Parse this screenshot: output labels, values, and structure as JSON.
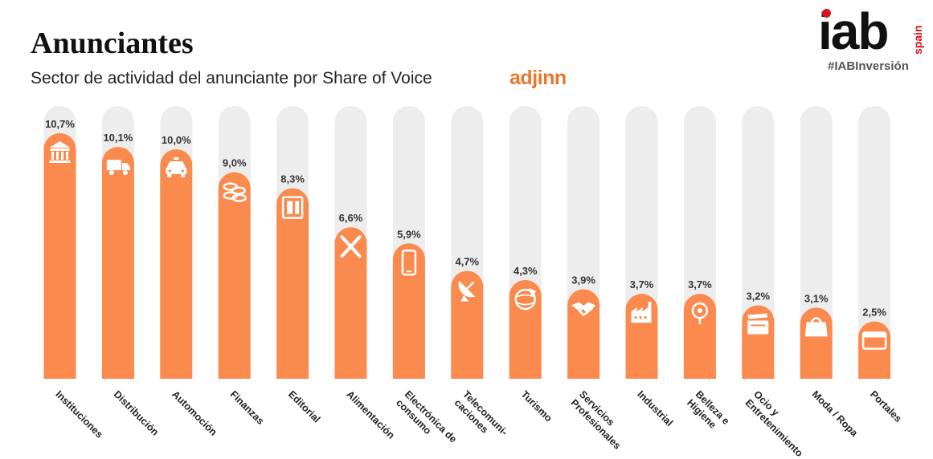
{
  "header": {
    "title": "Anunciantes",
    "subtitle": "Sector de actividad del anunciante por Share of Voice",
    "adjinn_left": "ad",
    "adjinn_right": "jinn"
  },
  "logo": {
    "text": "iab",
    "spain": "spain",
    "hashtag": "#IABInversión"
  },
  "colors": {
    "bar": "#fa8a4d",
    "track": "#ededed",
    "label": "#333333"
  },
  "chart_data": {
    "type": "bar",
    "title": "",
    "xlabel": "",
    "ylabel": "",
    "ylim": [
      0,
      11.5
    ],
    "grid": false,
    "legend": "none",
    "unit": "%",
    "categories": [
      "Instituciones",
      "Distribución",
      "Automoción",
      "Finanzas",
      "Editorial",
      "Alimentación",
      "Electrónica de consumo",
      "Telecomuni-caciones",
      "Turismo",
      "Servicios Profesionales",
      "Industrial",
      "Belleza e Higiene",
      "Ocio y Entretenimiento",
      "Moda / Ropa",
      "Portales"
    ],
    "category_lines": [
      [
        "Instituciones"
      ],
      [
        "Distribución"
      ],
      [
        "Automoción"
      ],
      [
        "Finanzas"
      ],
      [
        "Editorial"
      ],
      [
        "Alimentación"
      ],
      [
        "Electrónica de",
        "consumo"
      ],
      [
        "Telecomuni-",
        "caciones"
      ],
      [
        "Turismo"
      ],
      [
        "Servicios",
        "Profesionales"
      ],
      [
        "Industrial"
      ],
      [
        "Belleza e",
        "Higiene"
      ],
      [
        "Ocio y",
        "Entretenimiento"
      ],
      [
        "Moda / Ropa"
      ],
      [
        "Portales"
      ]
    ],
    "values": [
      10.7,
      10.1,
      10.0,
      9.0,
      8.3,
      6.6,
      5.9,
      4.7,
      4.3,
      3.9,
      3.7,
      3.7,
      3.2,
      3.1,
      2.5
    ],
    "value_labels": [
      "10,7%",
      "10,1%",
      "10,0%",
      "9,0%",
      "8,3%",
      "6,6%",
      "5,9%",
      "4,7%",
      "4,3%",
      "3,9%",
      "3,7%",
      "3,7%",
      "3,2%",
      "3,1%",
      "2,5%"
    ],
    "icons": [
      "bank-icon",
      "truck-icon",
      "taxi-icon",
      "coins-icon",
      "newspaper-icon",
      "fork-knife-icon",
      "smartphone-icon",
      "satellite-dish-icon",
      "globe-plane-icon",
      "handshake-icon",
      "factory-icon",
      "mirror-icon",
      "clapperboard-icon",
      "handbag-icon",
      "browser-window-icon"
    ]
  }
}
